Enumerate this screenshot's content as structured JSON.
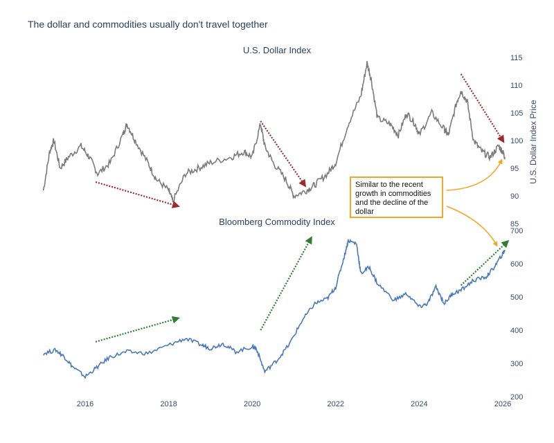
{
  "title": "The dollar and commodities usually don't travel together",
  "annotation_text": "Similar to the recent growth in commodities and the decline of the dollar",
  "chart_data": [
    {
      "type": "line",
      "title": "U.S. Dollar Index",
      "ylabel": "U.S. Dollar Index Price",
      "ylim": [
        85,
        115
      ],
      "yticks": [
        "85",
        "90",
        "95",
        "100",
        "105",
        "110",
        "115"
      ],
      "color": "#7a7a7a",
      "x": [
        2015.0,
        2015.15,
        2015.25,
        2015.4,
        2015.6,
        2015.9,
        2016.1,
        2016.3,
        2016.6,
        2016.9,
        2017.0,
        2017.2,
        2017.5,
        2017.7,
        2018.0,
        2018.1,
        2018.4,
        2018.7,
        2019.0,
        2019.5,
        2019.8,
        2020.0,
        2020.2,
        2020.3,
        2020.5,
        2020.8,
        2021.0,
        2021.3,
        2021.5,
        2021.8,
        2022.0,
        2022.3,
        2022.6,
        2022.75,
        2022.85,
        2023.0,
        2023.3,
        2023.5,
        2023.7,
        2023.9,
        2024.0,
        2024.3,
        2024.6,
        2024.7,
        2024.9,
        2025.0,
        2025.15,
        2025.3,
        2025.5,
        2025.7,
        2025.9,
        2026.0,
        2026.05
      ],
      "values": [
        91,
        98,
        100,
        95,
        97,
        99,
        97,
        94,
        96,
        101,
        103,
        100,
        96,
        93,
        91,
        89,
        94,
        95,
        96,
        97,
        98,
        97,
        103,
        99,
        96,
        93,
        90,
        91,
        92,
        94,
        96,
        103,
        108,
        114,
        111,
        104,
        103,
        101,
        105,
        103,
        101,
        105,
        102,
        101,
        107,
        109,
        107,
        100,
        98,
        97,
        99,
        98,
        97
      ],
      "arrows": [
        {
          "from": [
            2016.25,
            92.5
          ],
          "to": [
            2018.2,
            88.2
          ]
        },
        {
          "from": [
            2020.2,
            103.5
          ],
          "to": [
            2021.25,
            92
          ]
        },
        {
          "from": [
            2025.0,
            112
          ],
          "to": [
            2026.0,
            100
          ]
        }
      ],
      "arrow_color": "#9b2c2c"
    },
    {
      "type": "line",
      "title": "Bloomberg Commodity Index",
      "ylim": [
        200,
        700
      ],
      "yticks": [
        "200",
        "300",
        "400",
        "500",
        "600",
        "700"
      ],
      "color": "#4a78b8",
      "x": [
        2015.0,
        2015.3,
        2015.5,
        2015.7,
        2016.0,
        2016.3,
        2016.6,
        2017.0,
        2017.5,
        2018.0,
        2018.4,
        2018.8,
        2019.0,
        2019.3,
        2019.6,
        2020.0,
        2020.1,
        2020.3,
        2020.6,
        2020.9,
        2021.2,
        2021.5,
        2021.8,
        2022.0,
        2022.2,
        2022.3,
        2022.5,
        2022.6,
        2022.8,
        2023.0,
        2023.4,
        2023.7,
        2024.0,
        2024.2,
        2024.4,
        2024.6,
        2024.8,
        2025.0,
        2025.3,
        2025.6,
        2025.8,
        2026.0,
        2026.05
      ],
      "values": [
        330,
        340,
        320,
        290,
        260,
        290,
        320,
        335,
        330,
        355,
        375,
        355,
        345,
        360,
        335,
        350,
        345,
        275,
        310,
        360,
        430,
        480,
        495,
        530,
        620,
        670,
        660,
        570,
        590,
        540,
        490,
        510,
        470,
        480,
        530,
        480,
        510,
        520,
        550,
        560,
        590,
        630,
        640
      ],
      "arrows": [
        {
          "from": [
            2016.25,
            365
          ],
          "to": [
            2018.2,
            435
          ]
        },
        {
          "from": [
            2020.2,
            400
          ],
          "to": [
            2021.4,
            675
          ]
        },
        {
          "from": [
            2025.0,
            535
          ],
          "to": [
            2026.1,
            665
          ]
        }
      ],
      "arrow_color": "#2e7d32"
    }
  ],
  "xticks": [
    "2016",
    "2018",
    "2020",
    "2022",
    "2024",
    "2026"
  ],
  "callout_color": "#f5a623"
}
